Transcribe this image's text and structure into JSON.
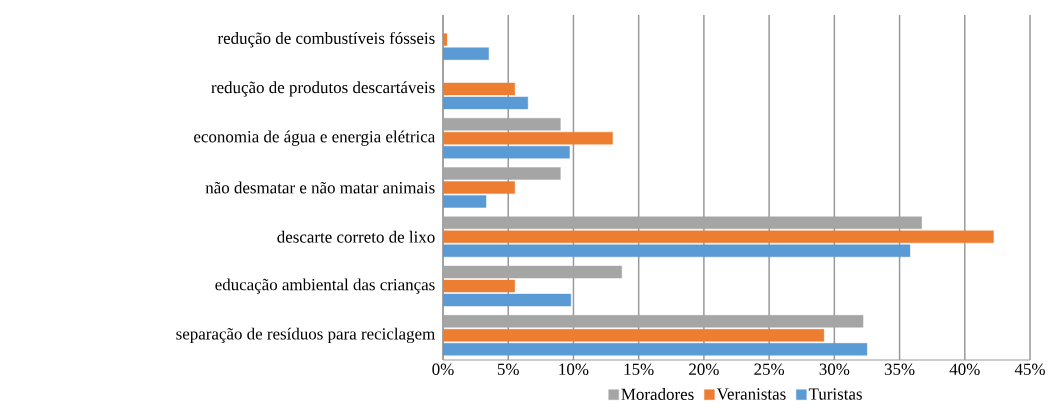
{
  "chart_data": {
    "type": "bar",
    "orientation": "horizontal",
    "categories": [
      "redução de combustíveis fósseis",
      "redução de produtos descartáveis",
      "economia de água e energia elétrica",
      "não desmatar e não matar animais",
      "descarte correto de lixo",
      "educação ambiental das crianças",
      "separação de resíduos para reciclagem"
    ],
    "series": [
      {
        "name": "Moradores",
        "color": "#a5a5a5",
        "values": [
          0,
          0,
          9,
          9,
          36.7,
          13.7,
          32.2
        ]
      },
      {
        "name": "Veranistas",
        "color": "#ed7d31",
        "values": [
          0.3,
          5.5,
          13,
          5.5,
          42.2,
          5.5,
          29.2
        ]
      },
      {
        "name": "Turistas",
        "color": "#5b9bd5",
        "values": [
          3.5,
          6.5,
          9.7,
          3.3,
          35.8,
          9.8,
          32.5
        ]
      }
    ],
    "xlim": [
      0,
      45
    ],
    "xticks": [
      {
        "value": 0,
        "label": "0%"
      },
      {
        "value": 5,
        "label": "5%"
      },
      {
        "value": 10,
        "label": "10%"
      },
      {
        "value": 15,
        "label": "15%"
      },
      {
        "value": 20,
        "label": "20%"
      },
      {
        "value": 25,
        "label": "25%"
      },
      {
        "value": 30,
        "label": "30%"
      },
      {
        "value": 35,
        "label": "35%"
      },
      {
        "value": 40,
        "label": "40%"
      },
      {
        "value": 45,
        "label": "45%"
      }
    ],
    "grid": "x",
    "legend": "bottom"
  }
}
